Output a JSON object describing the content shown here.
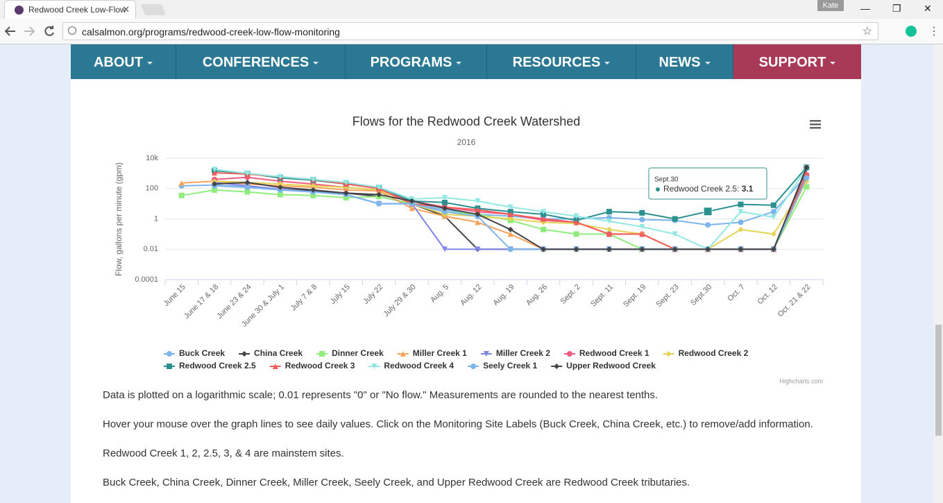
{
  "browser": {
    "tab_title": "Redwood Creek Low-Flow",
    "url": "calsalmon.org/programs/redwood-creek-low-flow-monitoring",
    "user": "Kate"
  },
  "nav": {
    "items": [
      "ABOUT",
      "CONFERENCES",
      "PROGRAMS",
      "RESOURCES",
      "NEWS",
      "SUPPORT"
    ]
  },
  "chart_data": {
    "type": "line",
    "title": "Flows for the Redwood Creek Watershed",
    "subtitle": "2016",
    "y_label": "Flow, gallons per minute (gpm)",
    "y_scale": "log",
    "grid": true,
    "legend_position": "bottom",
    "credits": "Highcharts.com",
    "categories": [
      "June 15",
      "June 17 & 18",
      "June 23 & 24",
      "June 30 & July 1",
      "July 7 & 8",
      "July 15",
      "July 22",
      "July 29 & 30",
      "Aug. 5",
      "Aug. 12",
      "Aug. 19",
      "Aug. 26",
      "Sept. 2",
      "Sept. 11",
      "Sept. 19",
      "Sept. 23",
      "Sept.30",
      "Oct. 7",
      "Oct. 12",
      "Oct. 21 & 22"
    ],
    "ylim": [
      0.0001,
      10000
    ],
    "yticks": [
      {
        "value": 10000,
        "label": "10k"
      },
      100,
      1,
      0.01,
      0.0001
    ],
    "series": [
      {
        "name": "Buck Creek",
        "color": "#7cb5ec",
        "values": [
          150,
          170,
          130,
          90,
          60,
          40,
          10,
          10,
          4,
          2,
          1.5,
          1,
          1,
          1.2,
          0.9,
          0.8,
          0.4,
          0.6,
          3,
          700
        ]
      },
      {
        "name": "China Creek",
        "color": "#434348",
        "values": [
          null,
          300,
          250,
          120,
          70,
          50,
          30,
          10,
          1.5,
          0.01,
          0.01,
          0.01,
          0.01,
          0.01,
          0.01,
          0.01,
          0.01,
          0.01,
          0.01,
          2000
        ]
      },
      {
        "name": "Dinner Creek",
        "color": "#90ed7d",
        "values": [
          35,
          80,
          60,
          40,
          35,
          25,
          30,
          10,
          3,
          2,
          0.8,
          0.2,
          0.1,
          0.1,
          0.01,
          0.01,
          0.01,
          0.01,
          0.01,
          130
        ]
      },
      {
        "name": "Miller Creek 1",
        "color": "#f7a35c",
        "values": [
          230,
          300,
          200,
          150,
          120,
          80,
          70,
          5,
          1.5,
          0.6,
          0.1,
          0.01,
          0.01,
          0.01,
          0.01,
          0.01,
          0.01,
          0.01,
          0.01,
          400
        ]
      },
      {
        "name": "Miller Creek 2",
        "color": "#8085e9",
        "values": [
          null,
          250,
          150,
          90,
          60,
          40,
          10,
          10,
          0.01,
          0.01,
          0.01,
          0.01,
          0.01,
          0.01,
          0.01,
          0.01,
          0.01,
          0.01,
          0.01,
          700
        ]
      },
      {
        "name": "Redwood Creek 1",
        "color": "#f15c80",
        "values": [
          null,
          400,
          550,
          300,
          200,
          120,
          80,
          15,
          6,
          3,
          2,
          0.8,
          0.6,
          0.1,
          0.1,
          0.01,
          0.01,
          0.01,
          0.01,
          800
        ]
      },
      {
        "name": "Redwood Creek 2",
        "color": "#e4d354",
        "values": [
          null,
          300,
          250,
          200,
          150,
          120,
          80,
          10,
          2,
          1.5,
          1,
          0.6,
          0.5,
          0.2,
          0.1,
          0.01,
          0.01,
          0.2,
          0.1,
          300
        ]
      },
      {
        "name": "Redwood Creek 2.5",
        "color": "#2b908f",
        "values": [
          null,
          1500,
          1000,
          500,
          350,
          200,
          120,
          15,
          12,
          5,
          3,
          2,
          0.8,
          3,
          2.5,
          1,
          3.1,
          9,
          8,
          2500
        ]
      },
      {
        "name": "Redwood Creek 3",
        "color": "#f45b5b",
        "values": [
          null,
          1100,
          900,
          600,
          400,
          200,
          100,
          10,
          6,
          4,
          2,
          1,
          0.6,
          0.1,
          0.1,
          0.01,
          0.01,
          0.01,
          0.01,
          900
        ]
      },
      {
        "name": "Redwood Creek 4",
        "color": "#91e8e1",
        "values": [
          null,
          1800,
          1000,
          600,
          400,
          250,
          120,
          20,
          25,
          15,
          6,
          3,
          1.5,
          0.7,
          0.3,
          0.1,
          0.01,
          3,
          1.3,
          2200
        ]
      },
      {
        "name": "Seely Creek 1",
        "color": "#7cb5ec",
        "values": [
          null,
          150,
          120,
          80,
          60,
          40,
          10,
          10,
          3,
          1.5,
          0.01,
          0.01,
          0.01,
          0.01,
          0.01,
          0.01,
          0.01,
          0.01,
          0.01,
          500
        ]
      },
      {
        "name": "Upper Redwood Creek",
        "color": "#434348",
        "values": [
          null,
          200,
          250,
          120,
          80,
          50,
          40,
          15,
          5,
          2,
          0.2,
          0.01,
          0.01,
          0.01,
          0.01,
          0.01,
          0.01,
          0.01,
          0.01,
          2500
        ]
      }
    ],
    "tooltip": {
      "series": 7,
      "index": 16
    }
  },
  "paragraphs": [
    "Data is plotted on a logarithmic scale; 0.01 represents \"0\" or \"No flow.\" Measurements are rounded to the nearest tenths.",
    "Hover your mouse over the graph lines to see daily values. Click on the Monitoring Site Labels (Buck Creek, China Creek, etc.) to remove/add information.",
    "Redwood Creek 1, 2, 2.5, 3, & 4 are mainstem sites.",
    "Buck Creek, China Creek, Dinner Creek, Miller Creek, Seely Creek, and Upper Redwood Creek are Redwood Creek tributaries."
  ]
}
